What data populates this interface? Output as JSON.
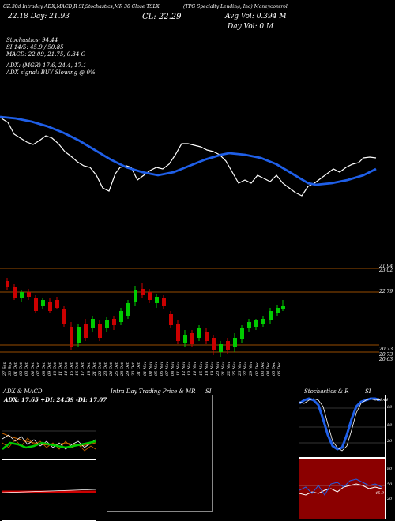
{
  "header": {
    "top_line": "(TPG Specialty Lending, Inc) Moneycontrol",
    "id_line": "GZ:30d Intraday ADX,MACD,R          SI,Stochastics,MR          30 Close TSLX",
    "day_range": "22.18 Day: 21.93",
    "close": "CL: 22.29",
    "avg_vol": "Avg Vol: 0.394  M",
    "day_vol": "Day Vol: 0   M",
    "stochastics": "Stochastics: 94.44",
    "si": "SI 14/5: 45.9 / 50.85",
    "macd": "MACD: 22.09, 21.75, 0.34  C",
    "adx": "ADX:                        (MGR) 17.6, 24.4, 17.1",
    "adx_signal": "ADX signal:                         BUY Slowing @ 0%"
  },
  "price_axis": {
    "label_top": "21.94",
    "label_top2": "23.02",
    "label_mid": "22.79",
    "label_low1": "20.73",
    "label_low2": "20.73",
    "label_low3": "20.63"
  },
  "dates": [
    "27 Sep",
    "30 Sep",
    "01 Oct",
    "02 Oct",
    "03 Oct",
    "04 Oct",
    "07 Oct",
    "08 Oct",
    "09 Oct",
    "10 Oct",
    "11 Oct",
    "14 Oct",
    "15 Oct",
    "16 Oct",
    "17 Oct",
    "18 Oct",
    "21 Oct",
    "22 Oct",
    "23 Oct",
    "24 Oct",
    "25 Oct",
    "28 Oct",
    "29 Oct",
    "30 Oct",
    "31 Oct",
    "01 Nov",
    "04 Nov",
    "05 Nov",
    "06 Nov",
    "07 Nov",
    "08 Nov",
    "11 Nov",
    "12 Nov",
    "13 Nov",
    "14 Nov",
    "15 Nov",
    "18 Nov",
    "19 Nov",
    "20 Nov",
    "21 Nov",
    "22 Nov",
    "25 Nov",
    "26 Nov",
    "27 Nov",
    "29 Nov",
    "02 Dec",
    "03 Dec",
    "04 Dec",
    "05 Dec",
    "06 Dec"
  ],
  "panels": {
    "adx": {
      "title": "ADX  & MACD",
      "values": "ADX: 17.65  +DI: 24.39 -DI: 17.07"
    },
    "intraday": {
      "title": "Intra  Day Trading Price  & MR",
      "si_label": "SI"
    },
    "stoch": {
      "title": "Stochastics & R",
      "si_label": "SI",
      "label_top": "94.44",
      "ticks": [
        "80",
        "50",
        "20"
      ],
      "rsi_ticks": [
        "80",
        "50",
        "20"
      ],
      "rsi_value": "45.9"
    }
  },
  "colors": {
    "up": "#00cc00",
    "down": "#cc0000",
    "ma": "#1f5fe8",
    "orange": "#cc6600",
    "rsi_bg": "#8b0000"
  }
}
